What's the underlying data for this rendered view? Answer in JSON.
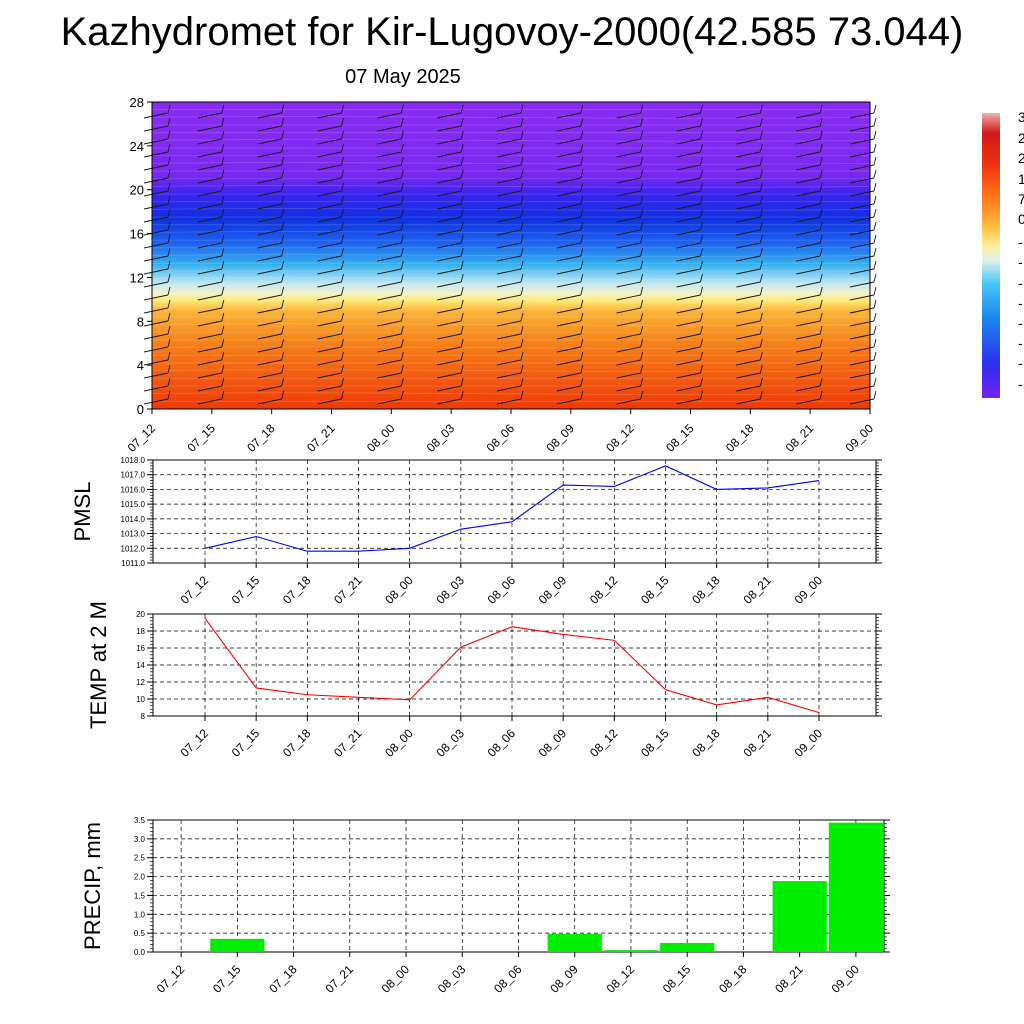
{
  "title": "Kazhydromet for Kir-Lugovoy-2000(42.585 73.044)",
  "subtitle": "07 May 2025",
  "time_labels": [
    "07_12",
    "07_15",
    "07_18",
    "07_21",
    "08_00",
    "08_03",
    "08_06",
    "08_09",
    "08_12",
    "08_15",
    "08_18",
    "08_21",
    "09_00"
  ],
  "colorbar_labels": [
    "3",
    "2",
    "2",
    "1",
    "7",
    "0",
    "-",
    "-",
    "-",
    "-",
    "-",
    "-",
    "-",
    "-"
  ],
  "chart_data": [
    {
      "type": "heatmap",
      "description_type": "time-height temperature cross-section with wind barbs",
      "categories": [
        "07_12",
        "07_15",
        "07_18",
        "07_21",
        "08_00",
        "08_03",
        "08_06",
        "08_09",
        "08_12",
        "08_15",
        "08_18",
        "08_21",
        "09_00"
      ],
      "ylim": [
        0,
        28
      ],
      "yticks": [
        0,
        4,
        8,
        12,
        16,
        20,
        24,
        28
      ],
      "colorbar_labels": [
        "3",
        "2",
        "2",
        "1",
        "7",
        "0",
        "-",
        "-",
        "-",
        "-",
        "-",
        "-",
        "-",
        "-"
      ]
    },
    {
      "type": "line",
      "ylabel": "PMSL",
      "categories": [
        "07_12",
        "07_15",
        "07_18",
        "07_21",
        "08_00",
        "08_03",
        "08_06",
        "08_09",
        "08_12",
        "08_15",
        "08_18",
        "08_21",
        "09_00"
      ],
      "values": [
        1012.0,
        1012.8,
        1011.8,
        1011.8,
        1012.0,
        1013.3,
        1013.8,
        1016.3,
        1016.2,
        1017.6,
        1016.0,
        1016.1,
        1016.6
      ],
      "ylim": [
        1011.0,
        1018.0
      ],
      "yticks": [
        "1011.0",
        "1012.0",
        "1013.0",
        "1014.0",
        "1015.0",
        "1016.0",
        "1017.0",
        "1018.0"
      ],
      "color": "#0000ff",
      "grid": true
    },
    {
      "type": "line",
      "ylabel": "TEMP at 2 M",
      "categories": [
        "07_12",
        "07_15",
        "07_18",
        "07_21",
        "08_00",
        "08_03",
        "08_06",
        "08_09",
        "08_12",
        "08_15",
        "08_18",
        "08_21",
        "09_00"
      ],
      "values": [
        19.5,
        11.3,
        10.5,
        10.2,
        9.9,
        16.1,
        18.5,
        17.6,
        16.9,
        11.1,
        9.3,
        10.2,
        8.4
      ],
      "ylim": [
        8,
        20
      ],
      "yticks": [
        "8",
        "10",
        "12",
        "14",
        "16",
        "18",
        "20"
      ],
      "color": "#ff0000",
      "grid": true
    },
    {
      "type": "bar",
      "ylabel": "PRECIP, mm",
      "categories": [
        "07_12",
        "07_15",
        "07_18",
        "07_21",
        "08_00",
        "08_03",
        "08_06",
        "08_09",
        "08_12",
        "08_15",
        "08_18",
        "08_21",
        "09_00"
      ],
      "values": [
        0,
        0.35,
        0,
        0,
        0,
        0,
        0,
        0.48,
        0.05,
        0.24,
        0,
        1.88,
        3.43
      ],
      "ylim": [
        0,
        3.5
      ],
      "yticks": [
        "0.0",
        "0.5",
        "1.0",
        "1.5",
        "2.0",
        "2.5",
        "3.0",
        "3.5"
      ],
      "color": "#00ee00",
      "grid": true
    }
  ]
}
